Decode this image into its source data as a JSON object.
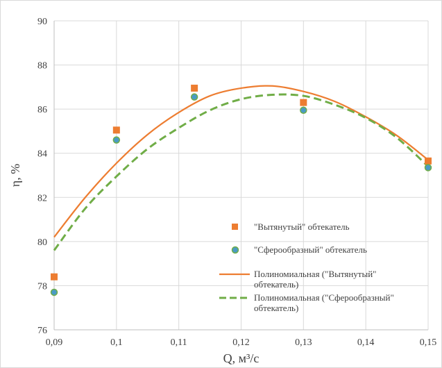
{
  "chart_data": {
    "type": "scatter",
    "xlabel": "Q, м³/с",
    "ylabel": "η, %",
    "xlim": [
      0.09,
      0.15
    ],
    "ylim": [
      76,
      90
    ],
    "x_ticks": [
      0.09,
      0.1,
      0.11,
      0.12,
      0.13,
      0.14,
      0.15
    ],
    "x_tick_labels": [
      "0,09",
      "0,1",
      "0,11",
      "0,12",
      "0,13",
      "0,14",
      "0,15"
    ],
    "y_ticks": [
      76,
      78,
      80,
      82,
      84,
      86,
      88,
      90
    ],
    "y_tick_labels": [
      "76",
      "78",
      "80",
      "82",
      "84",
      "86",
      "88",
      "90"
    ],
    "grid": true,
    "legend_position": "inside-bottom-center",
    "series": [
      {
        "name": "\"Вытянутый\" обтекатель",
        "kind": "points",
        "marker": "square",
        "color": "#ED7D31",
        "x": [
          0.09,
          0.1,
          0.1125,
          0.13,
          0.15
        ],
        "y": [
          78.4,
          85.05,
          86.95,
          86.3,
          83.65
        ]
      },
      {
        "name": "\"Сферообразный\" обтекатель",
        "kind": "points",
        "marker": "circle",
        "color": "#4A9BC5",
        "edge_color": "#70AD47",
        "x": [
          0.09,
          0.1,
          0.1125,
          0.13,
          0.15
        ],
        "y": [
          77.7,
          84.6,
          86.55,
          85.95,
          83.35
        ]
      },
      {
        "name": "Полиномиальная (\"Вытянутый\" обтекатель)",
        "name_lines": [
          "Полиномиальная (\"Вытянутый\"",
          "обтекатель)"
        ],
        "kind": "trend-solid",
        "color": "#ED7D31",
        "x": [
          0.09,
          0.095,
          0.1,
          0.105,
          0.11,
          0.115,
          0.12,
          0.125,
          0.13,
          0.135,
          0.14,
          0.145,
          0.15
        ],
        "y": [
          80.2,
          82.0,
          83.55,
          84.85,
          85.85,
          86.6,
          86.95,
          87.05,
          86.8,
          86.35,
          85.65,
          84.8,
          83.7
        ]
      },
      {
        "name": "Полиномиальная (\"Сферообразный\" обтекатель)",
        "name_lines": [
          "Полиномиальная (\"Сферообразный\"",
          "обтекатель)"
        ],
        "kind": "trend-dashed",
        "color": "#70AD47",
        "x": [
          0.09,
          0.095,
          0.1,
          0.105,
          0.11,
          0.115,
          0.12,
          0.125,
          0.13,
          0.135,
          0.14,
          0.145,
          0.15
        ],
        "y": [
          79.6,
          81.5,
          82.95,
          84.2,
          85.15,
          85.95,
          86.45,
          86.65,
          86.6,
          86.2,
          85.6,
          84.7,
          83.4
        ]
      }
    ]
  }
}
